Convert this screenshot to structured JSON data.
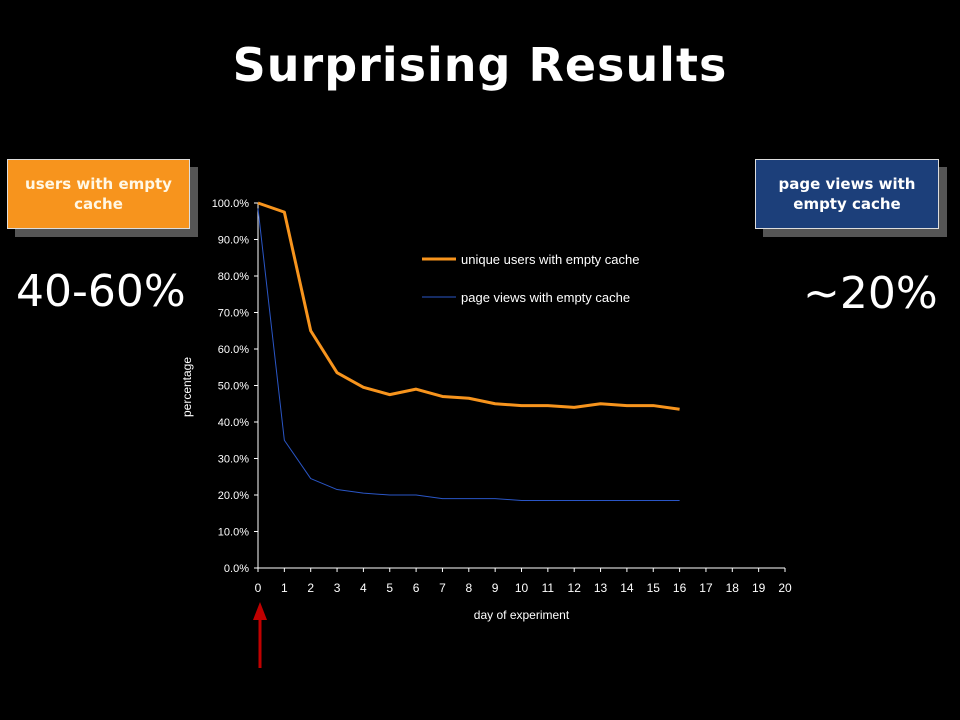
{
  "slide": {
    "title": "Surprising Results",
    "left_callout": "users with empty cache",
    "left_value": "40-60%",
    "right_callout": "page views with empty cache",
    "right_value": "~20%"
  },
  "colors": {
    "background": "#000000",
    "orange": "#f7941d",
    "blue": "#2a56c6",
    "callout_blue": "#1c3f7a",
    "arrow": "#c00000"
  },
  "chart_data": {
    "type": "line",
    "title": "",
    "xlabel": "day of experiment",
    "ylabel": "percentage",
    "xlim": [
      0,
      20
    ],
    "ylim": [
      0,
      100
    ],
    "x_ticks": [
      "0",
      "1",
      "2",
      "3",
      "4",
      "5",
      "6",
      "7",
      "8",
      "9",
      "10",
      "11",
      "12",
      "13",
      "14",
      "15",
      "16",
      "17",
      "18",
      "19",
      "20"
    ],
    "y_ticks": [
      "0.0%",
      "10.0%",
      "20.0%",
      "30.0%",
      "40.0%",
      "50.0%",
      "60.0%",
      "70.0%",
      "80.0%",
      "90.0%",
      "100.0%"
    ],
    "legend_position": "top-right",
    "grid": false,
    "series": [
      {
        "name": "unique users with empty cache",
        "color": "#f7941d",
        "x": [
          0,
          1,
          2,
          3,
          4,
          5,
          6,
          7,
          8,
          9,
          10,
          11,
          12,
          13,
          14,
          15,
          16
        ],
        "values": [
          100.0,
          97.5,
          65.0,
          53.5,
          49.5,
          47.5,
          49.0,
          47.0,
          46.5,
          45.0,
          44.5,
          44.5,
          44.0,
          45.0,
          44.5,
          44.5,
          43.5
        ]
      },
      {
        "name": "page views with empty cache",
        "color": "#2a56c6",
        "x": [
          0,
          1,
          2,
          3,
          4,
          5,
          6,
          7,
          8,
          9,
          10,
          11,
          12,
          13,
          14,
          15,
          16
        ],
        "values": [
          98.5,
          35.0,
          24.5,
          21.5,
          20.5,
          20.0,
          20.0,
          19.0,
          19.0,
          19.0,
          18.5,
          18.5,
          18.5,
          18.5,
          18.5,
          18.5,
          18.5
        ]
      }
    ]
  }
}
